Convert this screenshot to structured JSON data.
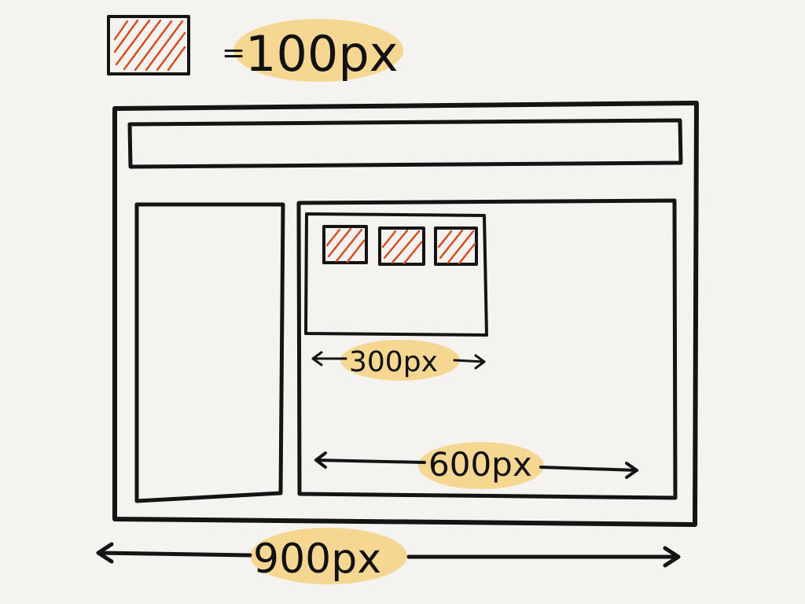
{
  "legend": {
    "equals_label": "=",
    "unit_label": "100px",
    "swatch_color": "#d9481c"
  },
  "diagram": {
    "tile_count": 3,
    "ink_color": "#141414",
    "highlight_color": "#f7cd72",
    "dimensions": {
      "inner_box_label": "300px",
      "content_label": "600px",
      "overall_label": "900px"
    }
  }
}
